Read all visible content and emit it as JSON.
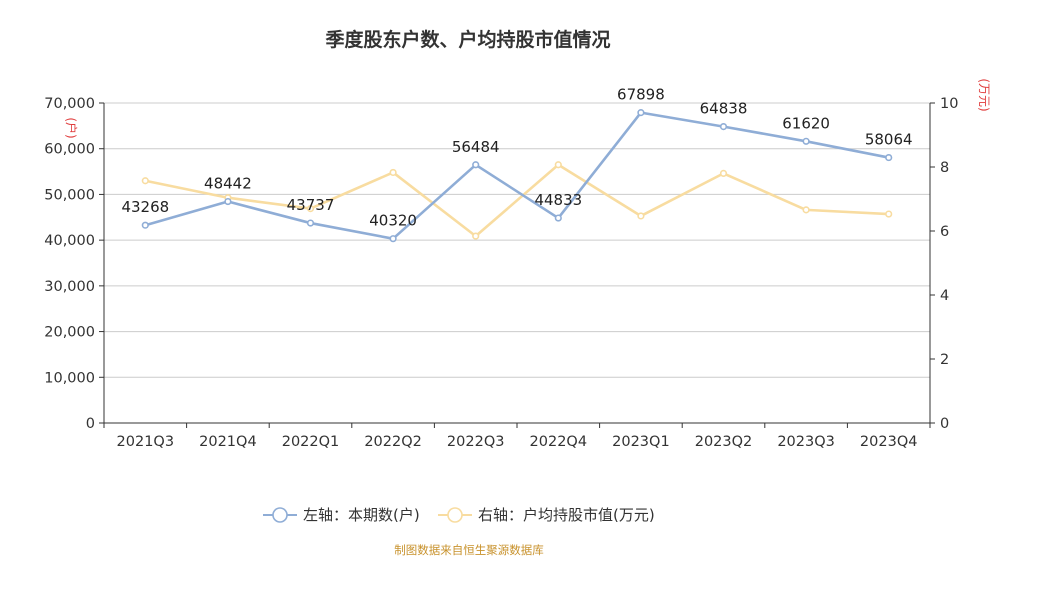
{
  "chart_data": {
    "type": "line",
    "title": "季度股东户数、户均持股市值情况",
    "categories": [
      "2021Q3",
      "2021Q4",
      "2022Q1",
      "2022Q2",
      "2022Q3",
      "2022Q4",
      "2023Q1",
      "2023Q2",
      "2023Q3",
      "2023Q4"
    ],
    "left_axis": {
      "unit": "(户)",
      "ylim": [
        0,
        70000
      ],
      "ticks": [
        "0",
        "10,000",
        "20,000",
        "30,000",
        "40,000",
        "50,000",
        "60,000",
        "70,000"
      ]
    },
    "right_axis": {
      "unit": "(万元)",
      "ylim": [
        0,
        10
      ],
      "ticks": [
        "0",
        "2",
        "4",
        "6",
        "8",
        "10"
      ]
    },
    "series": [
      {
        "name": "左轴：本期数(户)",
        "axis": "left",
        "color": "#8fadd6",
        "values": [
          43268,
          48442,
          43737,
          40320,
          56484,
          44833,
          67898,
          64838,
          61620,
          58064
        ],
        "data_labels": [
          "43268",
          "48442",
          "43737",
          "40320",
          "56484",
          "44833",
          "67898",
          "64838",
          "61620",
          "58064"
        ]
      },
      {
        "name": "右轴：户均持股市值(万元)",
        "axis": "right",
        "color": "#f8dca0",
        "values": [
          7.57,
          7.04,
          6.7,
          7.83,
          5.84,
          8.07,
          6.47,
          7.8,
          6.66,
          6.53
        ]
      }
    ],
    "grid": true,
    "legend_position": "bottom-center"
  },
  "source_note": "制图数据来自恒生聚源数据库"
}
